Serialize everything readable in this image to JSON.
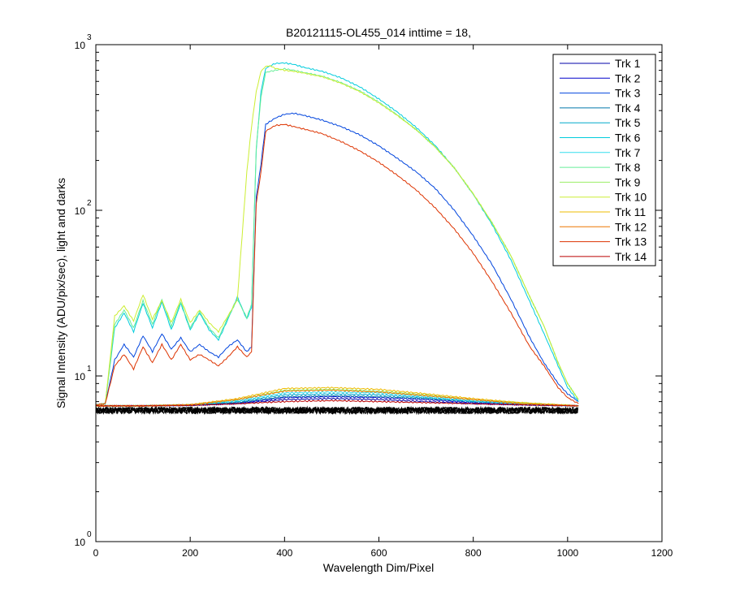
{
  "chart_data": {
    "type": "line",
    "title": "B20121115-OL455_014 inttime = 18,",
    "xlabel": "Wavelength Dim/Pixel",
    "ylabel": "Signal Intensity (ADU/pix/sec), light and darks",
    "xlim": [
      0,
      1200
    ],
    "ylim": [
      1,
      1000
    ],
    "yscale": "log",
    "grid": false,
    "legend_position": "top-right",
    "x_ticks": [
      "0",
      "200",
      "400",
      "600",
      "800",
      "1000",
      "1200"
    ],
    "y_ticks": [
      {
        "value": 1,
        "base": "10",
        "exp": "0"
      },
      {
        "value": 10,
        "base": "10",
        "exp": "1"
      },
      {
        "value": 100,
        "base": "10",
        "exp": "2"
      },
      {
        "value": 1000,
        "base": "10",
        "exp": "3"
      }
    ],
    "dark_color": "#000000",
    "dark_level": 6.2,
    "series": [
      {
        "name": "Trk 1",
        "color": "#0000AA",
        "x": [
          0,
          100,
          200,
          300,
          400,
          500,
          600,
          700,
          800,
          900,
          1023
        ],
        "y": [
          6.6,
          6.6,
          6.65,
          6.8,
          7.2,
          7.3,
          7.2,
          7.0,
          6.8,
          6.7,
          6.6
        ]
      },
      {
        "name": "Trk 2",
        "color": "#0000CC",
        "x": [
          0,
          100,
          200,
          300,
          400,
          500,
          600,
          700,
          800,
          900,
          1023
        ],
        "y": [
          6.6,
          6.6,
          6.65,
          6.85,
          7.4,
          7.5,
          7.4,
          7.2,
          6.9,
          6.7,
          6.6
        ]
      },
      {
        "name": "Trk 3",
        "color": "#0044DD",
        "x": [
          0,
          20,
          40,
          60,
          80,
          100,
          120,
          140,
          160,
          180,
          200,
          220,
          240,
          260,
          280,
          300,
          320,
          330,
          340,
          350,
          360,
          380,
          400,
          420,
          440,
          480,
          520,
          560,
          600,
          640,
          680,
          720,
          760,
          800,
          840,
          880,
          920,
          950,
          980,
          1000,
          1023
        ],
        "y": [
          6.7,
          6.8,
          12.5,
          15.5,
          13.0,
          17.5,
          14.0,
          18.0,
          14.5,
          17.0,
          14.0,
          15.5,
          14.0,
          13.0,
          15.0,
          16.5,
          14.0,
          15.0,
          120,
          190,
          330,
          360,
          380,
          385,
          375,
          350,
          320,
          285,
          245,
          205,
          170,
          135,
          100,
          70,
          47,
          29,
          17,
          12,
          9,
          7.8,
          7.0
        ]
      },
      {
        "name": "Trk 4",
        "color": "#0077AA",
        "x": [
          0,
          100,
          200,
          300,
          400,
          500,
          600,
          700,
          800,
          900,
          1023
        ],
        "y": [
          6.6,
          6.6,
          6.7,
          6.9,
          7.5,
          7.6,
          7.5,
          7.3,
          7.0,
          6.8,
          6.6
        ]
      },
      {
        "name": "Trk 5",
        "color": "#00AACC",
        "x": [
          0,
          100,
          200,
          300,
          400,
          500,
          600,
          700,
          800,
          900,
          1023
        ],
        "y": [
          6.6,
          6.6,
          6.7,
          7.0,
          7.7,
          7.8,
          7.7,
          7.4,
          7.0,
          6.8,
          6.6
        ]
      },
      {
        "name": "Trk 6",
        "color": "#00CCDD",
        "x": [
          0,
          20,
          40,
          60,
          80,
          100,
          120,
          140,
          160,
          180,
          200,
          220,
          240,
          260,
          280,
          300,
          320,
          330,
          340,
          350,
          360,
          380,
          400,
          420,
          440,
          480,
          520,
          560,
          600,
          640,
          680,
          720,
          760,
          800,
          840,
          880,
          920,
          950,
          980,
          1000,
          1023
        ],
        "y": [
          6.7,
          6.8,
          19.5,
          24.0,
          18.5,
          27.5,
          19.5,
          28.0,
          19.0,
          27.5,
          19.0,
          24.0,
          19.0,
          16.5,
          22.0,
          30.0,
          22.0,
          26.0,
          230,
          520,
          720,
          770,
          775,
          760,
          730,
          690,
          630,
          555,
          470,
          390,
          315,
          245,
          180,
          125,
          82,
          50,
          28,
          18,
          11.5,
          8.5,
          7.0
        ]
      },
      {
        "name": "Trk 7",
        "color": "#33DDEE",
        "x": [
          0,
          100,
          200,
          300,
          400,
          500,
          600,
          700,
          800,
          900,
          1023
        ],
        "y": [
          6.6,
          6.6,
          6.7,
          7.1,
          7.9,
          8.0,
          7.9,
          7.5,
          7.1,
          6.8,
          6.6
        ]
      },
      {
        "name": "Trk 8",
        "color": "#66EE99",
        "x": [
          0,
          20,
          40,
          60,
          80,
          100,
          120,
          140,
          160,
          180,
          200,
          220,
          240,
          260,
          280,
          300,
          320,
          330,
          340,
          350,
          360,
          380,
          400,
          420,
          440,
          480,
          520,
          560,
          600,
          640,
          680,
          720,
          760,
          800,
          840,
          880,
          920,
          950,
          980,
          1000,
          1023
        ],
        "y": [
          6.7,
          6.8,
          20.5,
          25.0,
          19.5,
          28.5,
          20.5,
          29.0,
          20.0,
          28.0,
          19.5,
          24.5,
          19.5,
          17.0,
          22.5,
          29.0,
          22.5,
          27.0,
          240,
          480,
          680,
          700,
          715,
          700,
          680,
          645,
          590,
          525,
          450,
          375,
          305,
          240,
          180,
          125,
          84,
          53,
          30,
          20,
          12,
          9.0,
          7.2
        ]
      },
      {
        "name": "Trk 9",
        "color": "#99EE66",
        "x": [
          0,
          100,
          200,
          300,
          400,
          500,
          600,
          700,
          800,
          900,
          1023
        ],
        "y": [
          6.6,
          6.6,
          6.7,
          7.2,
          8.2,
          8.3,
          8.1,
          7.7,
          7.2,
          6.9,
          6.6
        ]
      },
      {
        "name": "Trk 10",
        "color": "#CCEE33",
        "x": [
          0,
          20,
          40,
          60,
          80,
          100,
          120,
          140,
          160,
          180,
          200,
          220,
          240,
          260,
          280,
          300,
          310,
          320,
          330,
          340,
          350,
          360,
          370,
          380,
          400,
          420,
          440,
          480,
          520,
          560,
          600,
          640,
          680,
          720,
          760,
          800,
          840,
          880,
          920,
          950,
          980,
          1000,
          1023
        ],
        "y": [
          6.7,
          6.8,
          23.0,
          26.5,
          21.5,
          31.0,
          22.0,
          28.5,
          21.0,
          29.0,
          21.0,
          25.0,
          21.0,
          18.5,
          23.0,
          29.0,
          70,
          170,
          320,
          520,
          690,
          740,
          745,
          720,
          700,
          690,
          675,
          640,
          585,
          520,
          445,
          372,
          305,
          240,
          180,
          126,
          84,
          53,
          30,
          20,
          12,
          9.0,
          7.2
        ]
      },
      {
        "name": "Trk 11",
        "color": "#EEBB00",
        "x": [
          0,
          100,
          200,
          300,
          400,
          500,
          600,
          700,
          800,
          900,
          1023
        ],
        "y": [
          6.6,
          6.6,
          6.7,
          7.3,
          8.4,
          8.5,
          8.3,
          7.8,
          7.3,
          6.9,
          6.6
        ]
      },
      {
        "name": "Trk 12",
        "color": "#EE7700",
        "x": [
          0,
          100,
          200,
          300,
          400,
          500,
          600,
          700,
          800,
          900,
          1023
        ],
        "y": [
          6.6,
          6.6,
          6.7,
          7.2,
          8.1,
          8.2,
          8.0,
          7.6,
          7.2,
          6.8,
          6.6
        ]
      },
      {
        "name": "Trk 13",
        "color": "#DD3300",
        "x": [
          0,
          20,
          40,
          60,
          80,
          100,
          120,
          140,
          160,
          180,
          200,
          220,
          240,
          260,
          280,
          300,
          320,
          330,
          340,
          350,
          360,
          380,
          400,
          420,
          440,
          480,
          520,
          560,
          600,
          640,
          680,
          720,
          760,
          800,
          840,
          880,
          920,
          950,
          980,
          1000,
          1023
        ],
        "y": [
          6.7,
          6.8,
          11.5,
          13.5,
          11.0,
          15.0,
          12.0,
          15.5,
          12.5,
          15.5,
          12.5,
          13.5,
          12.5,
          11.5,
          13.0,
          15.0,
          13.0,
          14.0,
          110,
          170,
          300,
          325,
          330,
          320,
          310,
          290,
          260,
          228,
          195,
          162,
          132,
          103,
          77,
          55,
          37,
          24,
          15,
          11.5,
          8.5,
          7.4,
          6.8
        ]
      },
      {
        "name": "Trk 14",
        "color": "#BB0000",
        "x": [
          0,
          100,
          200,
          300,
          400,
          500,
          600,
          700,
          800,
          900,
          1023
        ],
        "y": [
          6.6,
          6.6,
          6.65,
          6.8,
          7.0,
          7.1,
          7.0,
          6.9,
          6.8,
          6.7,
          6.6
        ]
      }
    ]
  }
}
